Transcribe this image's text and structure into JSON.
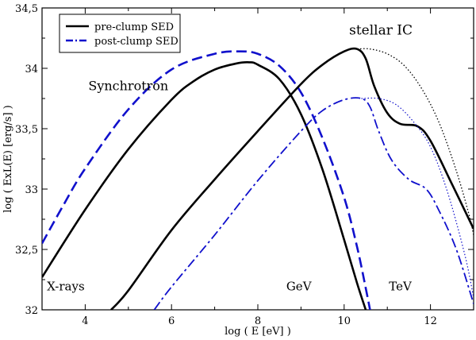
{
  "chart_data": {
    "type": "line",
    "title": "",
    "xlabel": "log ( E [eV] )",
    "ylabel": "log ( ExL(E) [erg/s] )",
    "xlim": [
      3,
      13
    ],
    "ylim": [
      32,
      34.5
    ],
    "x_ticks": [
      4,
      6,
      8,
      10,
      12
    ],
    "x_tick_labels": [
      "4",
      "6",
      "8",
      "10",
      "12"
    ],
    "y_ticks": [
      32,
      32.5,
      33,
      33.5,
      34,
      34.5
    ],
    "y_tick_labels": [
      "32",
      "32,5",
      "33",
      "33,5",
      "34",
      "34,5"
    ],
    "legend": {
      "placement": "top-left",
      "entries": [
        {
          "label": "pre-clump SED",
          "color": "#000000",
          "style": "solid"
        },
        {
          "label": "post-clump SED",
          "color": "#1010cc",
          "style": "dash-dot"
        }
      ]
    },
    "annotations": [
      {
        "text": "stellar IC",
        "x": 10.85,
        "y": 34.28,
        "size": 17
      },
      {
        "text": "Synchrotron",
        "x": 5.0,
        "y": 33.82,
        "size": 16
      },
      {
        "text": "X-rays",
        "x": 3.55,
        "y": 32.16,
        "size": 15
      },
      {
        "text": "GeV",
        "x": 8.95,
        "y": 32.16,
        "size": 15
      },
      {
        "text": "TeV",
        "x": 11.3,
        "y": 32.16,
        "size": 15
      }
    ],
    "series": [
      {
        "name": "pre-clump synchrotron",
        "color": "#000000",
        "style": "solid",
        "width": 2.6,
        "x": [
          3.0,
          4.0,
          5.0,
          6.0,
          6.5,
          7.0,
          7.5,
          7.8,
          8.0,
          8.5,
          9.0,
          9.5,
          10.0,
          10.3,
          10.5
        ],
        "y": [
          32.27,
          32.83,
          33.33,
          33.74,
          33.89,
          33.99,
          34.04,
          34.05,
          34.03,
          33.91,
          33.62,
          33.16,
          32.58,
          32.22,
          32.0
        ]
      },
      {
        "name": "post-clump synchrotron",
        "color": "#1010cc",
        "style": "dashed",
        "width": 2.6,
        "x": [
          3.0,
          3.5,
          4.0,
          5.0,
          6.0,
          7.0,
          7.6,
          8.0,
          8.5,
          9.0,
          9.5,
          10.0,
          10.3,
          10.5,
          10.6
        ],
        "y": [
          32.55,
          32.87,
          33.17,
          33.66,
          33.99,
          34.12,
          34.14,
          34.12,
          34.02,
          33.8,
          33.42,
          32.93,
          32.52,
          32.18,
          32.0
        ]
      },
      {
        "name": "pre-clump stellar IC",
        "color": "#000000",
        "style": "solid",
        "width": 2.6,
        "x": [
          4.6,
          5.0,
          6.0,
          7.0,
          8.0,
          9.0,
          9.5,
          10.0,
          10.3,
          10.5,
          10.7,
          11.0,
          11.3,
          11.7,
          12.0,
          12.5,
          13.0
        ],
        "y": [
          32.0,
          32.16,
          32.66,
          33.08,
          33.48,
          33.87,
          34.03,
          34.14,
          34.16,
          34.08,
          33.85,
          33.63,
          33.54,
          33.52,
          33.4,
          33.04,
          32.67
        ]
      },
      {
        "name": "pre-clump stellar IC (unabsorbed)",
        "color": "#000000",
        "style": "dotted",
        "width": 1.3,
        "x": [
          10.3,
          10.6,
          11.0,
          11.4,
          11.8,
          12.2,
          12.6,
          12.9,
          13.0
        ],
        "y": [
          34.16,
          34.16,
          34.12,
          34.02,
          33.83,
          33.55,
          33.15,
          32.78,
          32.62
        ]
      },
      {
        "name": "post-clump stellar IC",
        "color": "#1010cc",
        "style": "dash-dot",
        "width": 1.8,
        "x": [
          5.6,
          6.0,
          7.0,
          8.0,
          9.0,
          9.5,
          10.0,
          10.4,
          10.6,
          10.8,
          11.1,
          11.5,
          11.9,
          12.2,
          12.6,
          13.0
        ],
        "y": [
          32.0,
          32.19,
          32.62,
          33.07,
          33.48,
          33.65,
          33.74,
          33.75,
          33.68,
          33.48,
          33.24,
          33.08,
          33.0,
          32.82,
          32.5,
          32.05
        ]
      },
      {
        "name": "post-clump stellar IC (unabsorbed)",
        "color": "#1010cc",
        "style": "dotted",
        "width": 1.2,
        "x": [
          10.4,
          10.8,
          11.2,
          11.6,
          12.0,
          12.4,
          12.8,
          13.0
        ],
        "y": [
          33.75,
          33.75,
          33.7,
          33.56,
          33.35,
          32.97,
          32.45,
          32.1
        ]
      }
    ]
  }
}
